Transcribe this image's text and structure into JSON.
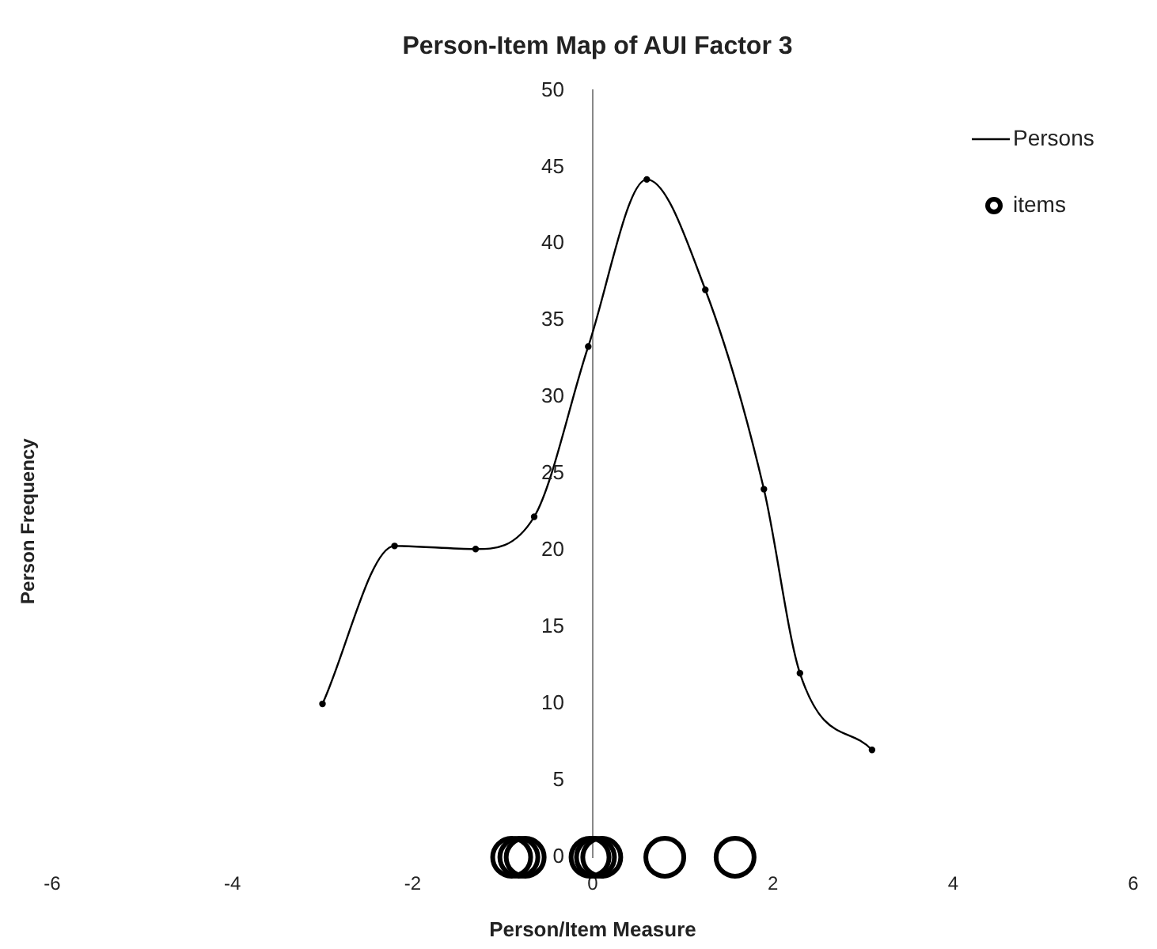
{
  "chart_data": {
    "type": "line",
    "title": "Person-Item Map of AUI Factor 3",
    "xlabel": "Person/Item Measure",
    "ylabel": "Person Frequency",
    "xlim": [
      -6,
      6
    ],
    "xticks": [
      -6,
      -4,
      -2,
      0,
      2,
      4,
      6
    ],
    "ylim": [
      0,
      50
    ],
    "yticks": [
      0,
      5,
      10,
      15,
      20,
      25,
      30,
      35,
      40,
      45,
      50
    ],
    "grid": false,
    "legend": "top right",
    "series": [
      {
        "name": "Persons",
        "type": "line",
        "color": "#000000",
        "marker": "circle",
        "x": [
          -3,
          -2.2,
          -1.3,
          -0.65,
          -0.05,
          0.6,
          1.25,
          1.9,
          2.3,
          3.1
        ],
        "values": [
          10,
          20.3,
          20.1,
          22.2,
          33.3,
          44.2,
          37,
          24,
          12,
          7
        ]
      },
      {
        "name": "items",
        "type": "scatter",
        "color": "#000000",
        "marker": "circle",
        "x": [
          -0.9,
          -0.82,
          -0.75,
          -0.03,
          0.03,
          0.1,
          0.8,
          1.58
        ],
        "values": [
          0,
          0,
          0,
          0,
          0,
          0,
          0,
          0
        ]
      }
    ]
  }
}
